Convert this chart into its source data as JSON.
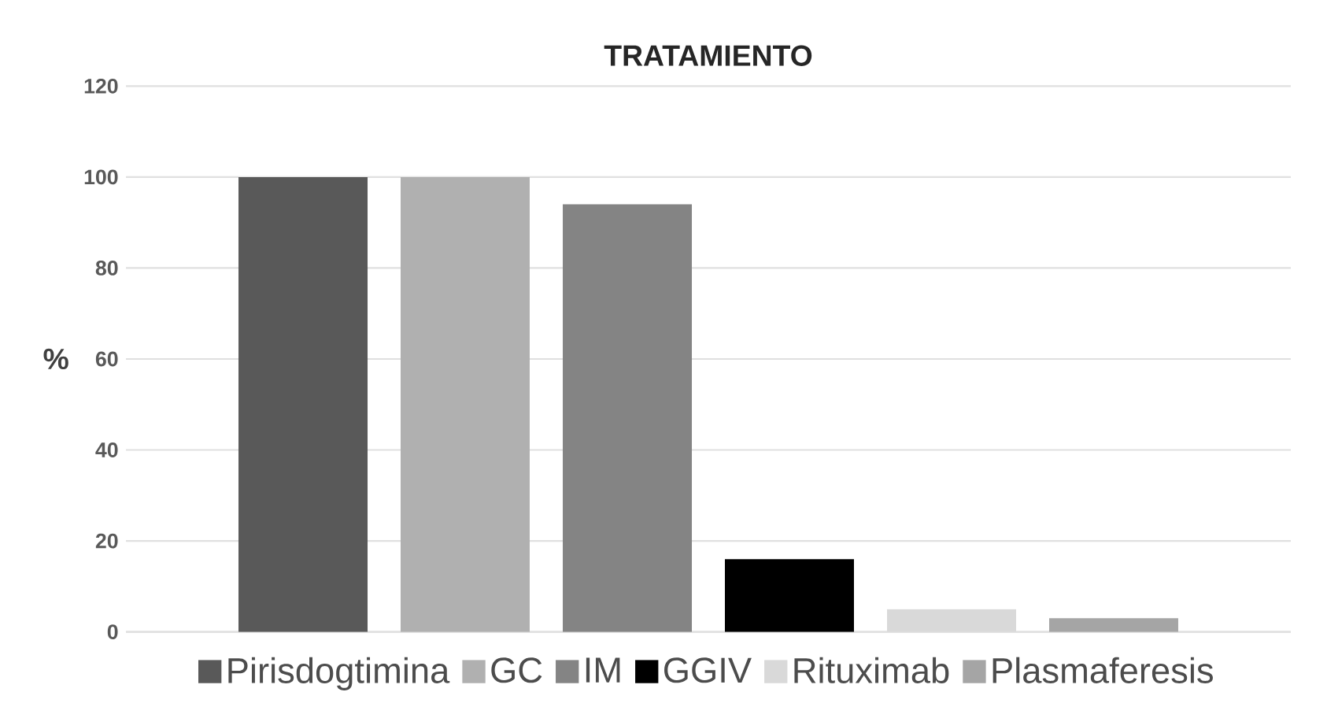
{
  "chart_data": {
    "type": "bar",
    "title": "TRATAMIENTO",
    "ylabel": "%",
    "categories": [
      null
    ],
    "series": [
      {
        "name": "Pirisdogtimina",
        "color": "#595959",
        "values": [
          100
        ]
      },
      {
        "name": "GC",
        "color": "#b0b0b0",
        "values": [
          100
        ]
      },
      {
        "name": "IM",
        "color": "#848484",
        "values": [
          94
        ]
      },
      {
        "name": "GGIV",
        "color": "#000000",
        "values": [
          16
        ]
      },
      {
        "name": "Rituximab",
        "color": "#d9d9d9",
        "values": [
          5
        ]
      },
      {
        "name": "Plasmaferesis",
        "color": "#a5a5a5",
        "values": [
          3
        ]
      }
    ],
    "ylim": [
      0,
      120
    ],
    "yticks": [
      0,
      20,
      40,
      60,
      80,
      100,
      120
    ],
    "grid": "y",
    "legend": "bottom"
  }
}
